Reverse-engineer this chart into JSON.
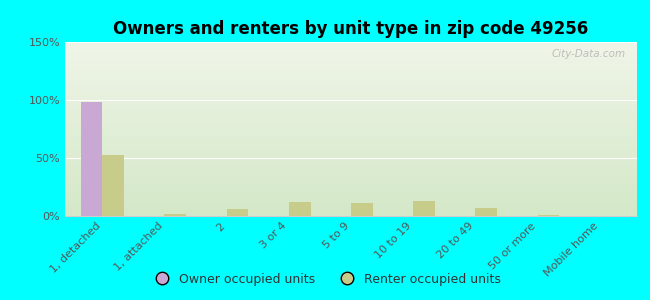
{
  "title": "Owners and renters by unit type in zip code 49256",
  "categories": [
    "1, detached",
    "1, attached",
    "2",
    "3 or 4",
    "5 to 9",
    "10 to 19",
    "20 to 49",
    "50 or more",
    "Mobile home"
  ],
  "owner_values": [
    98,
    0,
    0,
    0,
    0,
    0,
    0,
    0,
    0
  ],
  "renter_values": [
    53,
    2,
    6,
    12,
    11,
    13,
    7,
    1,
    0
  ],
  "owner_color": "#c9a8d4",
  "renter_color": "#c8cc8a",
  "background_color": "#00ffff",
  "ylim": [
    0,
    150
  ],
  "yticks": [
    0,
    50,
    100,
    150
  ],
  "ytick_labels": [
    "0%",
    "50%",
    "100%",
    "150%"
  ],
  "legend_owner": "Owner occupied units",
  "legend_renter": "Renter occupied units",
  "watermark": "City-Data.com",
  "bar_width": 0.35,
  "title_fontsize": 12,
  "tick_fontsize": 8,
  "legend_fontsize": 9
}
